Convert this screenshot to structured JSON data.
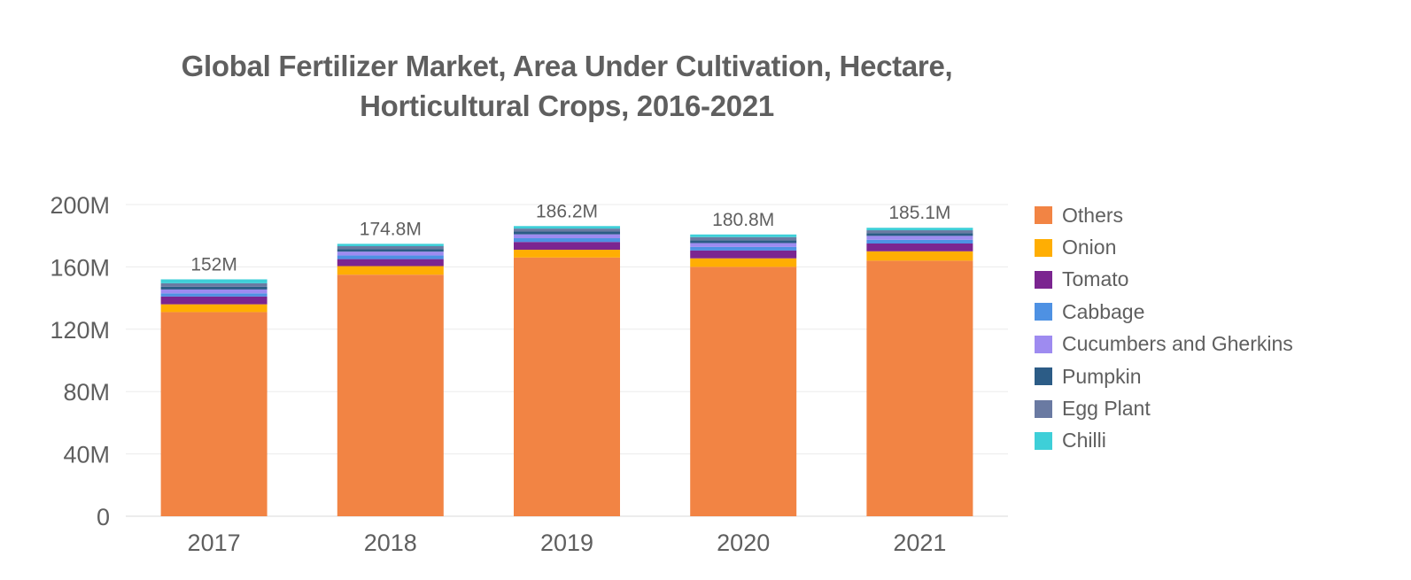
{
  "title_line1": "Global Fertilizer Market, Area Under Cultivation, Hectare,",
  "title_line2": "Horticultural Crops, 2016-2021",
  "chart_data": {
    "type": "bar",
    "stacked": true,
    "categories": [
      "2017",
      "2018",
      "2019",
      "2020",
      "2021"
    ],
    "totals_labels": [
      "152M",
      "174.8M",
      "186.2M",
      "180.8M",
      "185.1M"
    ],
    "y_ticks": [
      "0",
      "40M",
      "80M",
      "120M",
      "160M",
      "200M"
    ],
    "ylim": [
      0,
      200000000
    ],
    "grid": true,
    "legend_position": "right",
    "series": [
      {
        "name": "Others",
        "color": "#f28444",
        "values": [
          131000000,
          155000000,
          166000000,
          160000000,
          164000000
        ]
      },
      {
        "name": "Onion",
        "color": "#ffae03",
        "values": [
          5000000,
          5500000,
          5000000,
          5500000,
          6000000
        ]
      },
      {
        "name": "Tomato",
        "color": "#7b2590",
        "values": [
          5000000,
          4500000,
          5000000,
          5000000,
          5000000
        ]
      },
      {
        "name": "Cabbage",
        "color": "#4e91e3",
        "values": [
          2000000,
          2300000,
          2400000,
          2300000,
          2400000
        ]
      },
      {
        "name": "Cucumbers and Gherkins",
        "color": "#9e8bf0",
        "values": [
          2500000,
          2500000,
          2500000,
          2500000,
          2500000
        ]
      },
      {
        "name": "Pumpkin",
        "color": "#2c5c86",
        "values": [
          1800000,
          1700000,
          1800000,
          1800000,
          1800000
        ]
      },
      {
        "name": "Egg Plant",
        "color": "#6a7aa2",
        "values": [
          2200000,
          1800000,
          1900000,
          2000000,
          1800000
        ]
      },
      {
        "name": "Chilli",
        "color": "#3ecfd8",
        "values": [
          2500000,
          1500000,
          1600000,
          1700000,
          1600000
        ]
      }
    ]
  }
}
